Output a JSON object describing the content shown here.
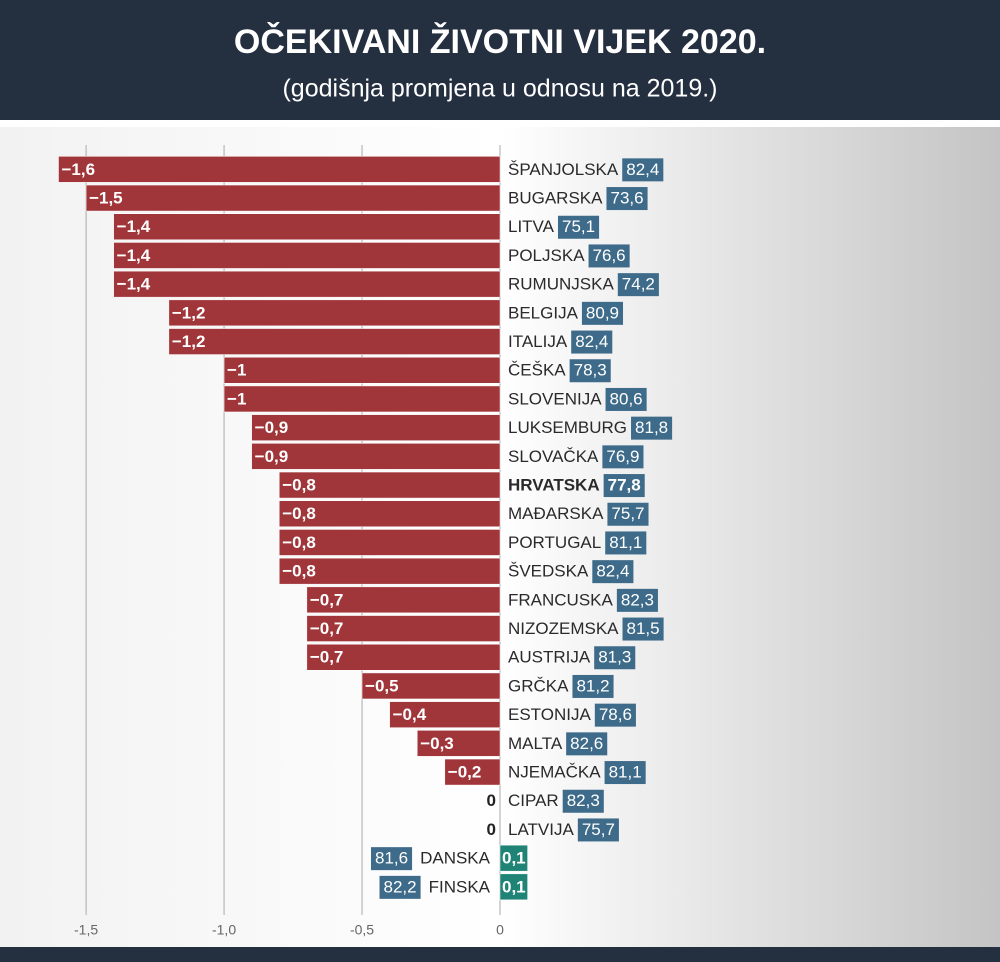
{
  "chart_data": {
    "type": "bar",
    "orientation": "horizontal",
    "title": "OČEKIVANI ŽIVOTNI VIJEK 2020.",
    "subtitle": "(godišnja promjena u odnosu na 2019.)",
    "categories": [
      "ŠPANJOLSKA",
      "BUGARSKA",
      "LITVA",
      "POLJSKA",
      "RUMUNJSKA",
      "BELGIJA",
      "ITALIJA",
      "ČEŠKA",
      "SLOVENIJA",
      "LUKSEMBURG",
      "SLOVAČKA",
      "HRVATSKA",
      "MAĐARSKA",
      "PORTUGAL",
      "ŠVEDSKA",
      "FRANCUSKA",
      "NIZOZEMSKA",
      "AUSTRIJA",
      "GRČKA",
      "ESTONIJA",
      "MALTA",
      "NJEMAČKA",
      "CIPAR",
      "LATVIJA",
      "DANSKA",
      "FINSKA"
    ],
    "values": [
      -1.6,
      -1.5,
      -1.4,
      -1.4,
      -1.4,
      -1.2,
      -1.2,
      -1,
      -1,
      -0.9,
      -0.9,
      -0.8,
      -0.8,
      -0.8,
      -0.8,
      -0.7,
      -0.7,
      -0.7,
      -0.5,
      -0.4,
      -0.3,
      -0.2,
      0,
      0,
      0.1,
      0.1
    ],
    "value_labels": [
      "−1,6",
      "−1,5",
      "−1,4",
      "−1,4",
      "−1,4",
      "−1,2",
      "−1,2",
      "−1",
      "−1",
      "−0,9",
      "−0,9",
      "−0,8",
      "−0,8",
      "−0,8",
      "−0,8",
      "−0,7",
      "−0,7",
      "−0,7",
      "−0,5",
      "−0,4",
      "−0,3",
      "−0,2",
      "0",
      "0",
      "0,1",
      "0,1"
    ],
    "life_expectancy": [
      "82,4",
      "73,6",
      "75,1",
      "76,6",
      "74,2",
      "80,9",
      "82,4",
      "78,3",
      "80,6",
      "81,8",
      "76,9",
      "77,8",
      "75,7",
      "81,1",
      "82,4",
      "82,3",
      "81,5",
      "81,3",
      "81,2",
      "78,6",
      "82,6",
      "81,1",
      "82,3",
      "75,7",
      "81,6",
      "82,2"
    ],
    "highlight_index": 11,
    "colors": {
      "negative": "#a1363a",
      "positive": "#1f8476",
      "label_box": "#3f6b8a"
    },
    "xlim": [
      -1.812,
      1.812
    ],
    "xticks": [
      {
        "value": -1.5,
        "label": "-1,5"
      },
      {
        "value": -1,
        "label": "-1,0"
      },
      {
        "value": -0.5,
        "label": "-0,5"
      },
      0
    ],
    "grid": true
  }
}
